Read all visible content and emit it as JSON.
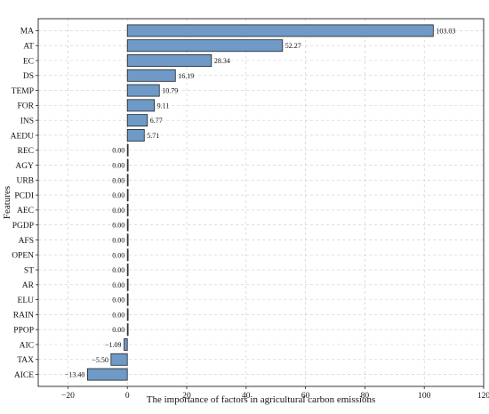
{
  "chart_data": {
    "type": "bar",
    "orientation": "horizontal",
    "title": "",
    "xlabel": "The importance of factors in agricultural carbon emissions",
    "ylabel": "Features",
    "xlim": [
      -30,
      120
    ],
    "xticks": [
      -20,
      0,
      20,
      40,
      60,
      80,
      100,
      120
    ],
    "xtick_labels": [
      "−20",
      "0",
      "20",
      "40",
      "60",
      "80",
      "100",
      "120"
    ],
    "grid": true,
    "bar_color": "#6f99c6",
    "categories": [
      "MA",
      "AT",
      "EC",
      "DS",
      "TEMP",
      "FOR",
      "INS",
      "AEDU",
      "REC",
      "AGY",
      "URB",
      "PCDI",
      "AEC",
      "PGDP",
      "AFS",
      "OPEN",
      "ST",
      "AR",
      "ELU",
      "RAIN",
      "PPOP",
      "AIC",
      "TAX",
      "AICE"
    ],
    "values": [
      103.03,
      52.27,
      28.34,
      16.19,
      10.79,
      9.11,
      6.77,
      5.71,
      0.0,
      0.0,
      0.0,
      0.0,
      0.0,
      0.0,
      0.0,
      0.0,
      0.0,
      0.0,
      0.0,
      0.0,
      0.0,
      -1.09,
      -5.5,
      -13.4
    ],
    "value_labels": [
      "103.03",
      "52.27",
      "28.34",
      "16.19",
      "10.79",
      "9.11",
      "6.77",
      "5.71",
      "0.00",
      "0.00",
      "0.00",
      "0.00",
      "0.00",
      "0.00",
      "0.00",
      "0.00",
      "0.00",
      "0.00",
      "0.00",
      "0.00",
      "0.00",
      "−1.09",
      "−5.50",
      "−13.40"
    ]
  }
}
